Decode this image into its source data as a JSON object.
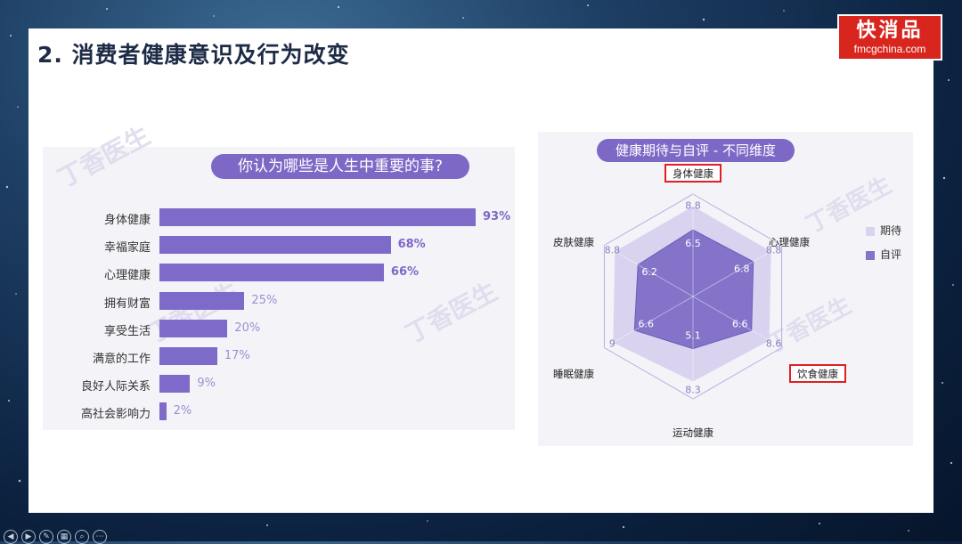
{
  "slide": {
    "title": "2. 消费者健康意识及行为改变"
  },
  "logo": {
    "cn": "快消品",
    "en": "fmcgchina.com"
  },
  "watermark": "丁香医生",
  "bar_chart": {
    "title": "你认为哪些是人生中重要的事?",
    "items": [
      {
        "label": "身体健康",
        "value": 93,
        "display": "93%"
      },
      {
        "label": "幸福家庭",
        "value": 68,
        "display": "68%"
      },
      {
        "label": "心理健康",
        "value": 66,
        "display": "66%"
      },
      {
        "label": "拥有财富",
        "value": 25,
        "display": "25%"
      },
      {
        "label": "享受生活",
        "value": 20,
        "display": "20%"
      },
      {
        "label": "满意的工作",
        "value": 17,
        "display": "17%"
      },
      {
        "label": "良好人际关系",
        "value": 9,
        "display": "9%"
      },
      {
        "label": "高社会影响力",
        "value": 2,
        "display": "2%"
      }
    ]
  },
  "radar": {
    "title": "健康期待与自评 - 不同维度",
    "axes": [
      "身体健康",
      "心理健康",
      "饮食健康",
      "运动健康",
      "睡眠健康",
      "皮肤健康"
    ],
    "expected_display": [
      "8.8",
      "8.8",
      "8.6",
      "8.3",
      "9",
      "8.8"
    ],
    "self_display": [
      "6.5",
      "6.8",
      "6.6",
      "5.1",
      "6.6",
      "6.2"
    ],
    "legend": {
      "expected": "期待",
      "self": "自评"
    },
    "colors": {
      "expected": "#d9d3f0",
      "self": "#8473c9",
      "highlight": "#e02020"
    }
  },
  "chart_data": [
    {
      "type": "bar",
      "title": "你认为哪些是人生中重要的事?",
      "categories": [
        "身体健康",
        "幸福家庭",
        "心理健康",
        "拥有财富",
        "享受生活",
        "满意的工作",
        "良好人际关系",
        "高社会影响力"
      ],
      "values": [
        93,
        68,
        66,
        25,
        20,
        17,
        9,
        2
      ],
      "unit": "%"
    },
    {
      "type": "radar",
      "title": "健康期待与自评 - 不同维度",
      "categories": [
        "身体健康",
        "心理健康",
        "饮食健康",
        "运动健康",
        "睡眠健康",
        "皮肤健康"
      ],
      "series": [
        {
          "name": "期待",
          "values": [
            8.8,
            8.8,
            8.6,
            8.3,
            9,
            8.8
          ]
        },
        {
          "name": "自评",
          "values": [
            6.5,
            6.8,
            6.6,
            5.1,
            6.6,
            6.2
          ]
        }
      ],
      "legend": "right"
    }
  ]
}
